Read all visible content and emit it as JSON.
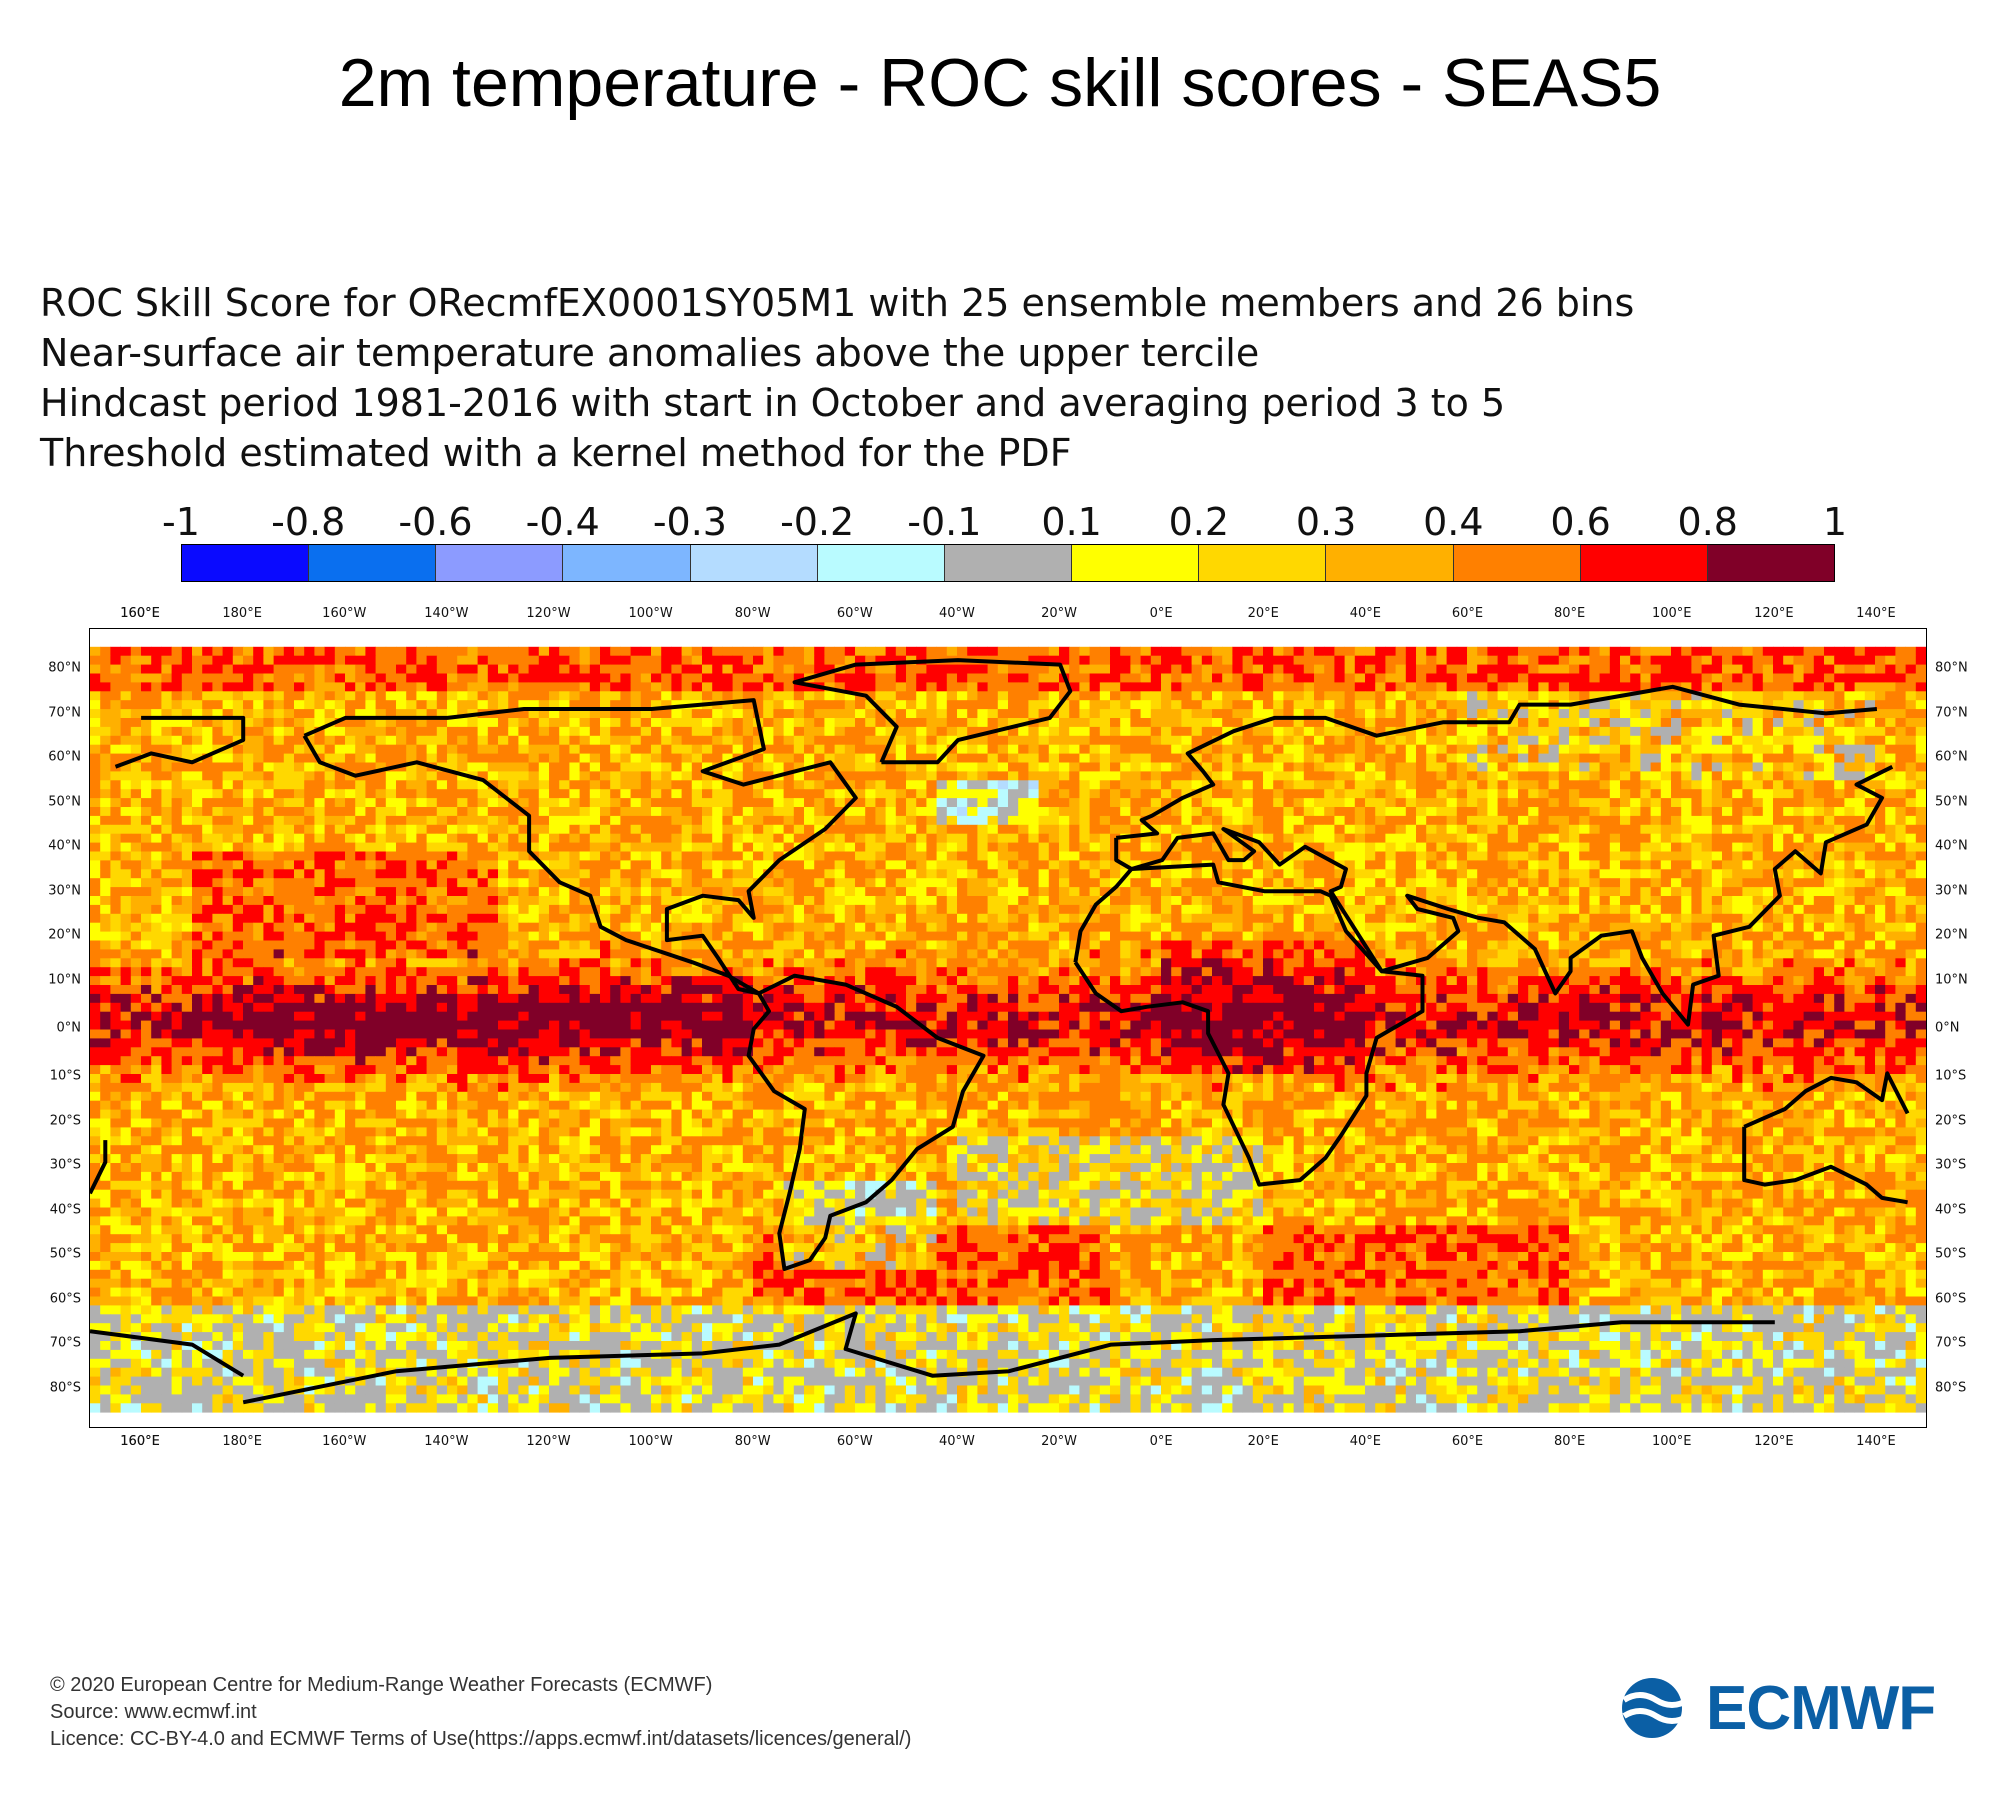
{
  "title": "2m temperature - ROC skill scores - SEAS5",
  "subtitle_lines": [
    "ROC Skill Score for ORecmfEX0001SY05M1 with 25 ensemble members and 26 bins",
    "Near-surface air temperature anomalies above the upper tercile",
    "Hindcast period 1981-2016 with start in October and averaging period  3 to  5",
    "Threshold estimated with a kernel method for the PDF"
  ],
  "legend": {
    "labels": [
      "-1",
      "-0.8",
      "-0.6",
      "-0.4",
      "-0.3",
      "-0.2",
      "-0.1",
      "0.1",
      "0.2",
      "0.3",
      "0.4",
      "0.6",
      "0.8",
      "1"
    ],
    "colors": [
      "#0a0aff",
      "#0a6fef",
      "#8c9bff",
      "#7db6ff",
      "#b4dcff",
      "#b9fbff",
      "#b0b0b0",
      "#ffff00",
      "#ffd800",
      "#ffb000",
      "#ff8000",
      "#ff0000",
      "#800028"
    ]
  },
  "map": {
    "top_axis_labels": [
      "160°E",
      "180°E",
      "160°W",
      "140°W",
      "120°W",
      "100°W",
      "80°W",
      "60°W",
      "40°W",
      "20°W",
      "0°E",
      "20°E",
      "40°E",
      "60°E",
      "80°E",
      "100°E",
      "120°E",
      "140°E",
      "160°E"
    ],
    "bottom_axis_labels": [
      "160°E",
      "180°E",
      "160°W",
      "140°W",
      "120°W",
      "100°W",
      "80°W",
      "60°W",
      "40°W",
      "20°W",
      "0°E",
      "20°E",
      "40°E",
      "60°E",
      "80°E",
      "100°E",
      "120°E",
      "140°E",
      "160°E"
    ],
    "left_axis_labels": [
      "80°N",
      "70°N",
      "60°N",
      "50°N",
      "40°N",
      "30°N",
      "20°N",
      "10°N",
      "0°N",
      "10°S",
      "20°S",
      "30°S",
      "40°S",
      "50°S",
      "60°S",
      "70°S",
      "80°S"
    ],
    "right_axis_labels": [
      "80°N",
      "70°N",
      "60°N",
      "50°N",
      "40°N",
      "30°N",
      "20°N",
      "10°N",
      "0°N",
      "10°S",
      "20°S",
      "30°S",
      "40°S",
      "50°S",
      "60°S",
      "70°S",
      "80°S"
    ]
  },
  "footer": {
    "line1": "© 2020 European Centre for Medium-Range Weather Forecasts (ECMWF)",
    "line2": "Source: www.ecmwf.int",
    "line3": "Licence: CC-BY-4.0 and ECMWF Terms of Use(https://apps.ecmwf.int/datasets/licences/general/)"
  },
  "logo_text": "ECMWF"
}
